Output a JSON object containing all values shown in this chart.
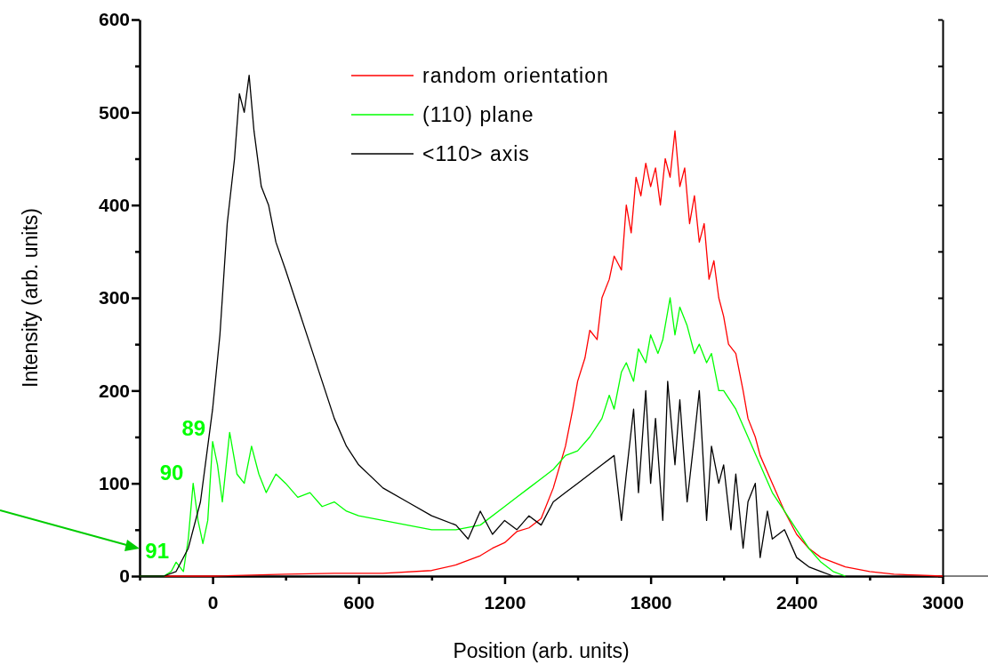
{
  "chart_data": {
    "type": "line",
    "xlabel": "Position (arb. units)",
    "ylabel": "Intensity (arb. units)",
    "xlim": [
      -300,
      3000
    ],
    "ylim": [
      0,
      600
    ],
    "xticks": [
      {
        "value": -300,
        "label": null
      },
      0,
      {
        "value": 300,
        "label": null
      },
      600,
      {
        "value": 900,
        "label": null
      },
      1200,
      {
        "value": 1500,
        "label": null
      },
      1800,
      {
        "value": 2100,
        "label": null
      },
      2400,
      {
        "value": 2700,
        "label": null
      },
      3000
    ],
    "yticks": [
      0,
      {
        "value": 50,
        "label": null
      },
      100,
      {
        "value": 150,
        "label": null
      },
      200,
      {
        "value": 250,
        "label": null
      },
      300,
      {
        "value": 350,
        "label": null
      },
      400,
      {
        "value": 450,
        "label": null
      },
      500,
      {
        "value": 550,
        "label": null
      },
      600
    ],
    "legend": "top",
    "grid": false,
    "series": [
      {
        "name": "random orientation",
        "color": "#ff0000",
        "x": [
          -300,
          0,
          300,
          500,
          700,
          900,
          1000,
          1100,
          1150,
          1200,
          1250,
          1300,
          1350,
          1400,
          1450,
          1480,
          1500,
          1530,
          1550,
          1580,
          1600,
          1630,
          1650,
          1680,
          1700,
          1720,
          1740,
          1760,
          1780,
          1800,
          1820,
          1840,
          1860,
          1880,
          1900,
          1920,
          1940,
          1960,
          1980,
          2000,
          2020,
          2040,
          2060,
          2080,
          2100,
          2120,
          2150,
          2180,
          2200,
          2230,
          2250,
          2300,
          2350,
          2400,
          2450,
          2500,
          2600,
          2700,
          2800,
          2900,
          3000
        ],
        "values": [
          0,
          0,
          2,
          3,
          3,
          6,
          12,
          22,
          30,
          36,
          48,
          52,
          62,
          95,
          140,
          180,
          210,
          235,
          265,
          255,
          300,
          320,
          345,
          330,
          400,
          370,
          430,
          410,
          445,
          420,
          440,
          400,
          450,
          430,
          480,
          420,
          440,
          380,
          410,
          360,
          380,
          320,
          340,
          300,
          280,
          250,
          240,
          200,
          170,
          150,
          130,
          100,
          70,
          45,
          30,
          20,
          10,
          5,
          2,
          1,
          0
        ]
      },
      {
        "name": "(110) plane",
        "color": "#00ff00",
        "x": [
          -300,
          -200,
          -170,
          -150,
          -120,
          -100,
          -80,
          -60,
          -40,
          -20,
          0,
          20,
          40,
          70,
          100,
          130,
          160,
          190,
          220,
          260,
          300,
          350,
          400,
          450,
          500,
          550,
          600,
          700,
          800,
          900,
          1000,
          1100,
          1200,
          1250,
          1300,
          1350,
          1400,
          1450,
          1500,
          1550,
          1600,
          1630,
          1650,
          1680,
          1700,
          1730,
          1750,
          1780,
          1800,
          1830,
          1850,
          1880,
          1900,
          1920,
          1950,
          1980,
          2000,
          2030,
          2050,
          2080,
          2100,
          2150,
          2200,
          2250,
          2300,
          2350,
          2400,
          2450,
          2500,
          2550,
          2600
        ],
        "values": [
          0,
          0,
          5,
          15,
          5,
          40,
          100,
          60,
          35,
          60,
          145,
          120,
          80,
          155,
          110,
          100,
          140,
          110,
          90,
          110,
          100,
          85,
          90,
          75,
          80,
          70,
          65,
          60,
          55,
          50,
          50,
          55,
          75,
          85,
          95,
          105,
          115,
          130,
          135,
          150,
          170,
          195,
          180,
          220,
          230,
          210,
          245,
          230,
          260,
          240,
          255,
          300,
          260,
          290,
          270,
          240,
          250,
          230,
          240,
          200,
          200,
          180,
          150,
          120,
          90,
          70,
          50,
          30,
          15,
          5,
          0
        ]
      },
      {
        "name": "<110> axis",
        "color": "#000000",
        "x": [
          -300,
          -200,
          -150,
          -100,
          -50,
          0,
          30,
          60,
          90,
          110,
          130,
          150,
          170,
          200,
          230,
          260,
          300,
          350,
          400,
          450,
          500,
          550,
          600,
          700,
          800,
          900,
          1000,
          1050,
          1100,
          1150,
          1200,
          1250,
          1300,
          1350,
          1400,
          1450,
          1500,
          1550,
          1600,
          1650,
          1680,
          1700,
          1730,
          1750,
          1780,
          1800,
          1820,
          1850,
          1870,
          1900,
          1920,
          1950,
          1980,
          2000,
          2030,
          2050,
          2080,
          2100,
          2130,
          2150,
          2180,
          2200,
          2230,
          2250,
          2280,
          2300,
          2350,
          2400,
          2450,
          2500,
          2550
        ],
        "values": [
          0,
          0,
          5,
          30,
          80,
          180,
          260,
          380,
          450,
          520,
          500,
          540,
          480,
          420,
          400,
          360,
          330,
          290,
          250,
          210,
          170,
          140,
          120,
          95,
          80,
          65,
          55,
          40,
          70,
          45,
          60,
          50,
          65,
          55,
          80,
          90,
          100,
          110,
          120,
          130,
          60,
          110,
          180,
          90,
          200,
          100,
          170,
          60,
          210,
          120,
          190,
          80,
          150,
          200,
          60,
          140,
          100,
          120,
          50,
          110,
          30,
          80,
          100,
          20,
          70,
          40,
          50,
          20,
          10,
          5,
          0
        ]
      }
    ],
    "annotations": [
      {
        "text": "89",
        "x": 0,
        "y": 148
      },
      {
        "text": "90",
        "x": -90,
        "y": 100
      },
      {
        "text": "91",
        "x": -150,
        "y": 15
      }
    ]
  }
}
